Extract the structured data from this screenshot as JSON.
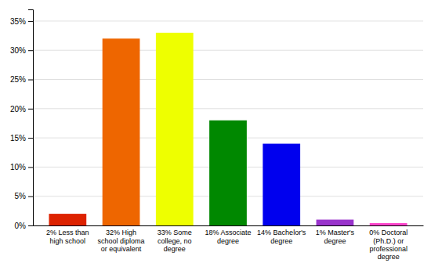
{
  "chart_data": {
    "type": "bar",
    "categories": [
      "2% Less than\nhigh school",
      "32% High\nschool diploma\nor equivalent",
      "33% Some\ncollege, no\ndegree",
      "18% Associate\ndegree",
      "14% Bachelor's\ndegree",
      "1% Master's\ndegree",
      "0% Doctoral\n(Ph.D.) or\nprofessional\ndegree"
    ],
    "values": [
      2,
      32,
      33,
      18,
      14,
      1,
      0.4
    ],
    "colors": [
      "#dd2200",
      "#ee6600",
      "#eeff00",
      "#008800",
      "#0000ee",
      "#9933cc",
      "#ff44cc"
    ],
    "ylim": [
      0,
      37
    ],
    "yticks": [
      {
        "value": 0,
        "label": "0%"
      },
      {
        "value": 5,
        "label": "5%"
      },
      {
        "value": 10,
        "label": "10%"
      },
      {
        "value": 15,
        "label": "15%"
      },
      {
        "value": 20,
        "label": "20%"
      },
      {
        "value": 25,
        "label": "25%"
      },
      {
        "value": 30,
        "label": "30%"
      },
      {
        "value": 35,
        "label": "35%"
      }
    ],
    "grid": true
  }
}
